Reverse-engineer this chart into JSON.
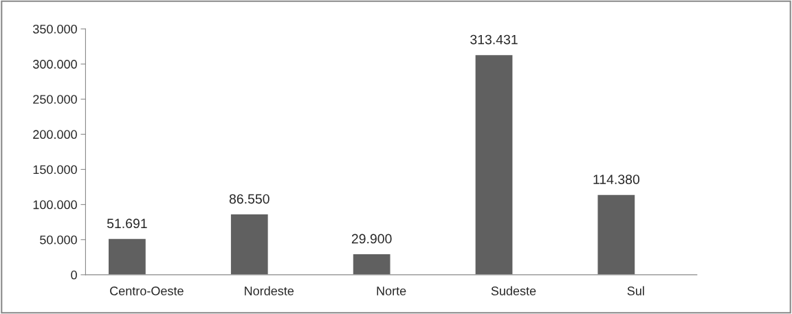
{
  "chart_data": {
    "type": "bar",
    "categories": [
      "Centro-Oeste",
      "Nordeste",
      "Norte",
      "Sudeste",
      "Sul"
    ],
    "values": [
      51691,
      86550,
      29900,
      313431,
      114380
    ],
    "value_labels": [
      "51.691",
      "86.550",
      "29.900",
      "313.431",
      "114.380"
    ],
    "color": "#606060",
    "ylim": [
      0,
      350000
    ],
    "yticks": [
      {
        "value": 0,
        "label": "0"
      },
      {
        "value": 50000,
        "label": "50.000"
      },
      {
        "value": 100000,
        "label": "100.000"
      },
      {
        "value": 150000,
        "label": "150.000"
      },
      {
        "value": 200000,
        "label": "200.000"
      },
      {
        "value": 250000,
        "label": "250.000"
      },
      {
        "value": 300000,
        "label": "300.000"
      },
      {
        "value": 350000,
        "label": "350.000"
      }
    ],
    "grid": false,
    "legend": false
  }
}
